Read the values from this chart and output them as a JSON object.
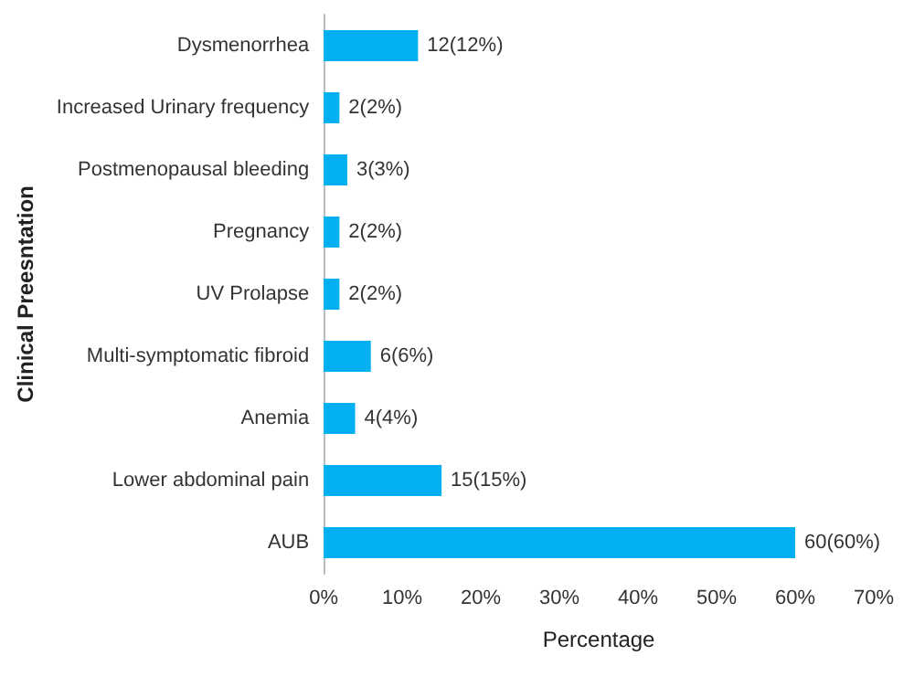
{
  "chart_data": {
    "type": "bar",
    "orientation": "horizontal",
    "xlabel": "Percentage",
    "ylabel": "Clinical Preesntation",
    "categories": [
      "Dysmenorrhea",
      "Increased Urinary frequency",
      "Postmenopausal bleeding",
      "Pregnancy",
      "UV Prolapse",
      "Multi-symptomatic fibroid",
      "Anemia",
      "Lower abdominal pain",
      "AUB"
    ],
    "values": [
      12,
      2,
      3,
      2,
      2,
      6,
      4,
      15,
      60
    ],
    "value_labels": [
      "12(12%)",
      "2(2%)",
      "3(3%)",
      "2(2%)",
      "2(2%)",
      "6(6%)",
      "4(4%)",
      "15(15%)",
      "60(60%)"
    ],
    "color": "#00b0f0",
    "xlim": [
      0,
      70
    ],
    "xticks": [
      {
        "value": 0,
        "label": "0%"
      },
      {
        "value": 10,
        "label": "10%"
      },
      {
        "value": 20,
        "label": "20%"
      },
      {
        "value": 30,
        "label": "30%"
      },
      {
        "value": 40,
        "label": "40%"
      },
      {
        "value": 50,
        "label": "50%"
      },
      {
        "value": 60,
        "label": "60%"
      },
      {
        "value": 70,
        "label": "70%"
      }
    ],
    "grid": false
  }
}
